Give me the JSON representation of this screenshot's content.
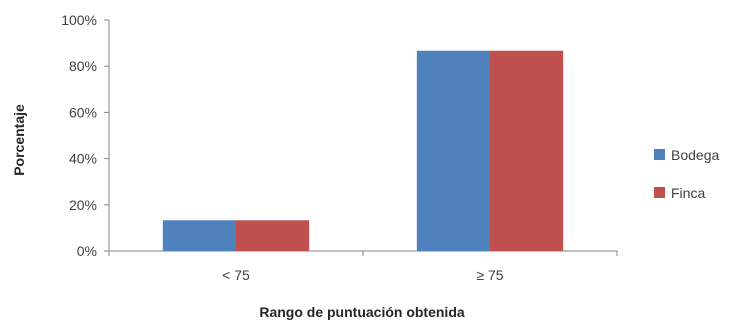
{
  "chart_data": {
    "type": "bar",
    "categories": [
      "< 75",
      "≥ 75"
    ],
    "series": [
      {
        "name": "Bodega",
        "values": [
          13.3,
          86.7
        ],
        "color": "#4f81bd"
      },
      {
        "name": "Finca",
        "values": [
          13.3,
          86.7
        ],
        "color": "#c0504d"
      }
    ],
    "xlabel": "Rango de puntuación obtenida",
    "ylabel": "Porcentaje",
    "ylim": [
      0,
      100
    ],
    "yticks": [
      "0%",
      "20%",
      "40%",
      "60%",
      "80%",
      "100%"
    ],
    "ytick_values": [
      0,
      20,
      40,
      60,
      80,
      100
    ],
    "grid": false,
    "legend": "right"
  }
}
